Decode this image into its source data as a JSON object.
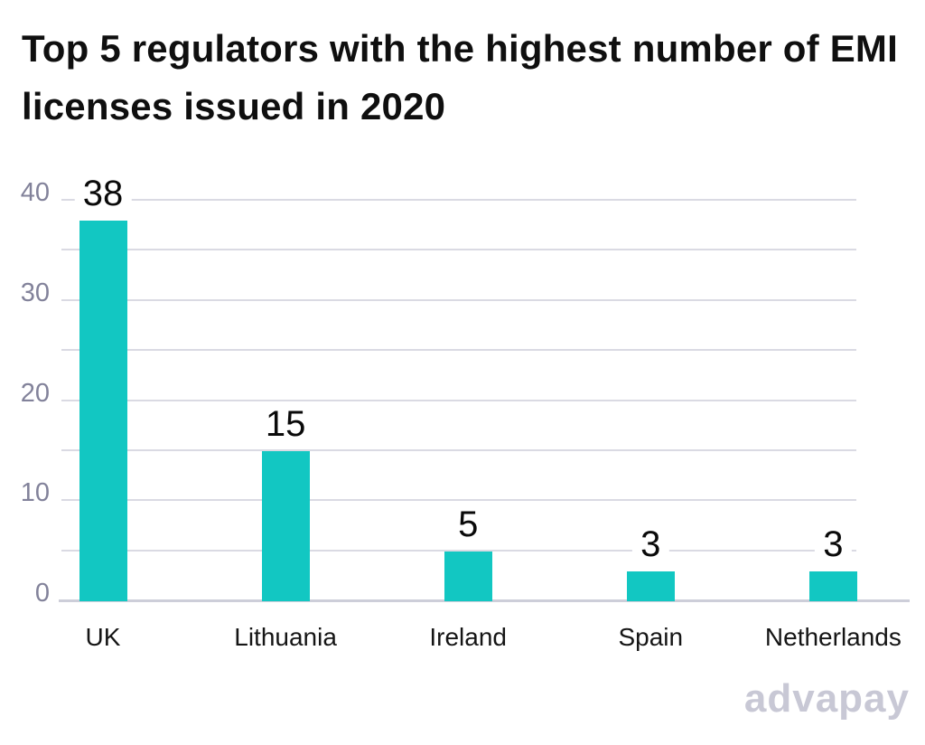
{
  "title": {
    "lines": [
      "Top 5 regulators with the highest number of EMI",
      "licenses issued in 2020"
    ]
  },
  "chart_data": {
    "type": "bar",
    "title": "Top 5 regulators with the highest number of EMI licenses issued in 2020",
    "categories": [
      "UK",
      "Lithuania",
      "Ireland",
      "Spain",
      "Netherlands"
    ],
    "values": [
      38,
      15,
      5,
      3,
      3
    ],
    "value_labels": [
      "38",
      "15",
      "5",
      "3",
      "3"
    ],
    "xlabel": "",
    "ylabel": "",
    "ylim": [
      0,
      40
    ],
    "yticks": [
      0,
      10,
      20,
      30,
      40
    ],
    "gridline_interval": 5,
    "grid": true,
    "legend": false,
    "bar_color": "#12c7c2",
    "gridline_color": "#dadae3",
    "baseline_color": "#cdced9",
    "ytick_color": "#82829a",
    "xtick_color": "#151515",
    "value_label_color": "#0a0a0a",
    "title_color": "#0f0f0f"
  },
  "branding": {
    "logo_text": "advapay",
    "logo_color": "#c8c8d5"
  }
}
